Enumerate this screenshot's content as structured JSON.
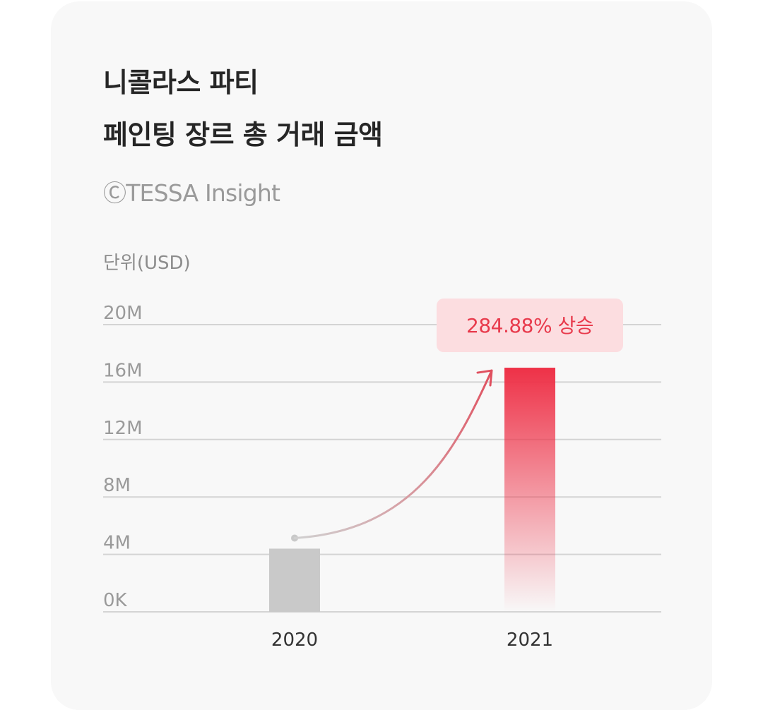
{
  "header": {
    "title_line1": "니콜라스 파티",
    "title_line2": "페인팅 장르 총 거래 금액",
    "source": "ⒸTESSA Insight",
    "unit": "단위(USD)"
  },
  "chart_data": {
    "type": "bar",
    "title": "니콜라스 파티 페인팅 장르 총 거래 금액",
    "ylabel": "단위(USD)",
    "xlabel": "",
    "categories": [
      "2020",
      "2021"
    ],
    "values": [
      4400000,
      17000000
    ],
    "ylim": [
      0,
      20000000
    ],
    "y_ticks": [
      {
        "value": 0,
        "label": "0K"
      },
      {
        "value": 4000000,
        "label": "4M"
      },
      {
        "value": 8000000,
        "label": "8M"
      },
      {
        "value": 12000000,
        "label": "12M"
      },
      {
        "value": 16000000,
        "label": "16M"
      },
      {
        "value": 20000000,
        "label": "20M"
      }
    ],
    "grid": true,
    "annotation": "284.88% 상승",
    "colors": {
      "bar_2020": "#c9c9c9",
      "bar_2021": "#ee3147",
      "grid": "#d4d4d4",
      "callout_bg": "#fcdde0",
      "callout_text": "#e83a4c",
      "arrow": "#e0505f"
    }
  }
}
